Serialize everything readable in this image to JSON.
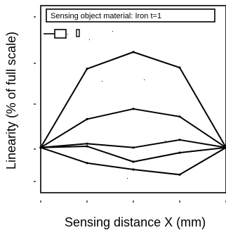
{
  "chart_data": {
    "type": "line",
    "title": "",
    "annotation": "Sensing object material: Iron t=1",
    "xlabel": "Sensing distance X (mm)",
    "ylabel": "Linearity (% of full scale)",
    "x": [
      0,
      1,
      2,
      3,
      4
    ],
    "series": [
      {
        "values": [
          0,
          61,
          74,
          62,
          0
        ]
      },
      {
        "values": [
          0,
          22,
          30,
          24,
          0
        ]
      },
      {
        "values": [
          0,
          3,
          0,
          6,
          0
        ]
      },
      {
        "values": [
          0,
          1,
          -11,
          -4,
          0
        ]
      },
      {
        "values": [
          0,
          -12,
          -17,
          -21,
          0
        ]
      }
    ],
    "xlim": [
      0,
      4
    ],
    "ylim": [
      -35,
      110
    ],
    "grid": false,
    "legend": "top-left"
  }
}
